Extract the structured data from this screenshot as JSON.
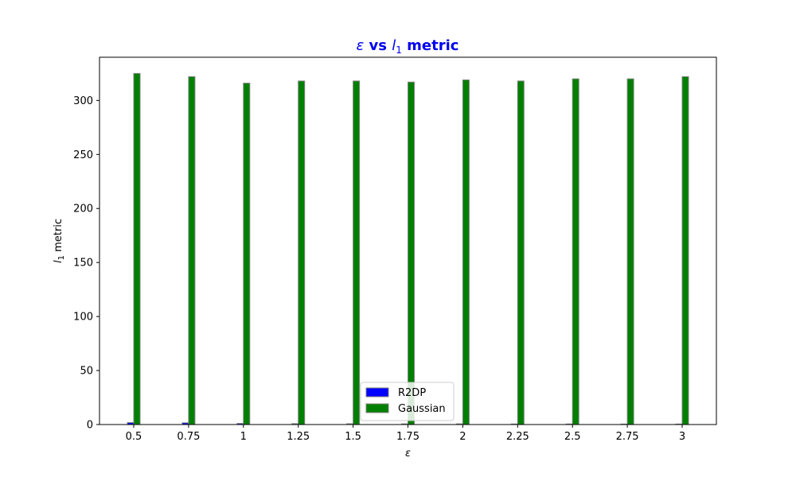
{
  "chart_data": {
    "type": "bar",
    "title": {
      "symbol": "ε",
      "connector": " vs ",
      "metric_letter": "l",
      "metric_subscript": "1",
      "metric_word": " metric",
      "color": "#0000ee"
    },
    "xlabel": "ε",
    "ylabel": {
      "letter": "l",
      "subscript": "1",
      "word": " metric"
    },
    "categories": [
      "0.5",
      "0.75",
      "1",
      "1.25",
      "1.5",
      "1.75",
      "2",
      "2.25",
      "2.5",
      "2.75",
      "3"
    ],
    "ylim": [
      0,
      340
    ],
    "yticks": [
      0,
      50,
      100,
      150,
      200,
      250,
      300
    ],
    "series": [
      {
        "name": "R2DP",
        "color": "#0000ff",
        "values": [
          1.8,
          1.6,
          1.0,
          0.8,
          0.7,
          0.6,
          0.6,
          0.5,
          0.5,
          0.4,
          0.4
        ]
      },
      {
        "name": "Gaussian",
        "color": "#008000",
        "values": [
          325,
          322,
          316,
          318,
          318,
          317,
          319,
          318,
          320,
          320,
          322
        ]
      }
    ],
    "edge_color": "#808080",
    "legend": {
      "position": "bottom-center"
    },
    "grid": false
  }
}
